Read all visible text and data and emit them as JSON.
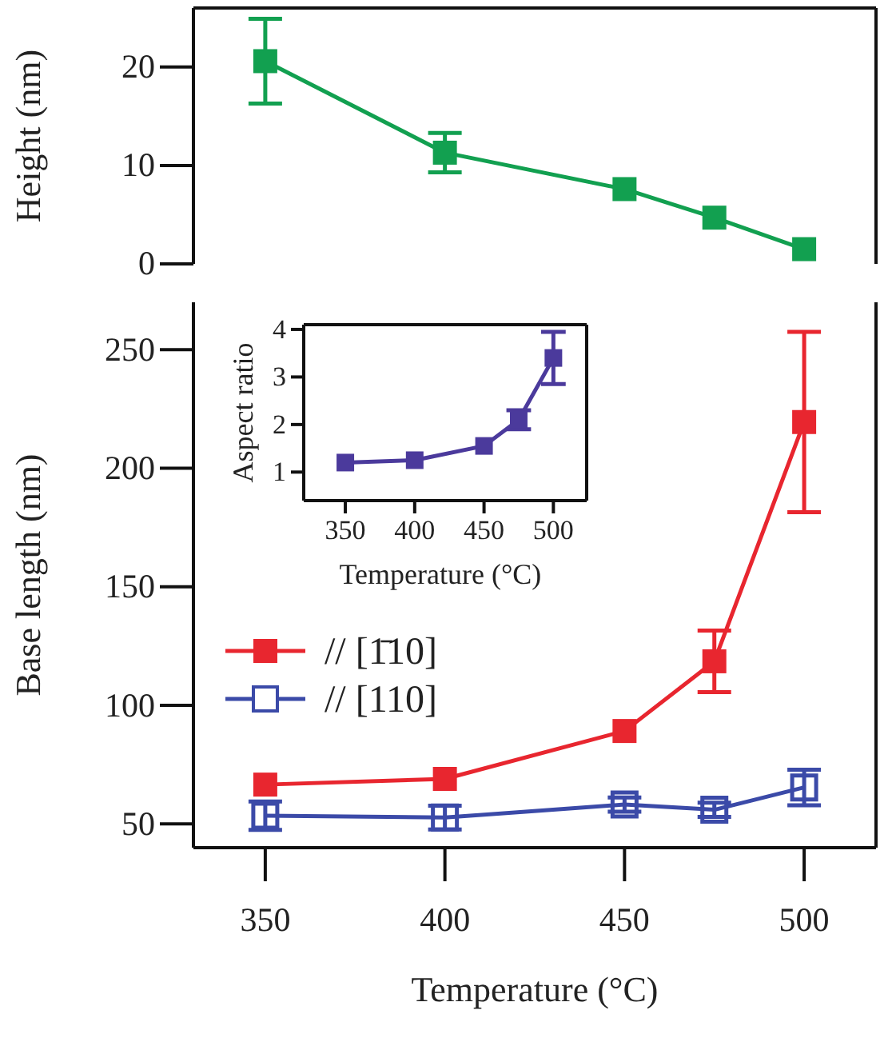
{
  "chart_data": [
    {
      "type": "line",
      "ylabel": "Height (nm)",
      "x": [
        350,
        400,
        450,
        475,
        500
      ],
      "xlim": [
        330,
        520
      ],
      "ylim": [
        0,
        26
      ],
      "yticks": [
        0,
        10,
        20
      ],
      "tick_labels": "y",
      "marker": "square",
      "series": [
        {
          "color": "#12a050",
          "values": [
            20.6,
            11.3,
            7.6,
            4.7,
            1.5
          ],
          "errors": [
            4.3,
            2,
            null,
            null,
            null
          ]
        }
      ]
    },
    {
      "type": "line",
      "xlabel": "Temperature (°C)",
      "ylabel": "Base length (nm)",
      "x": [
        350,
        400,
        450,
        475,
        500
      ],
      "xlim": [
        330,
        520
      ],
      "ylim": [
        40,
        270
      ],
      "xticks": [
        350,
        400,
        450,
        500
      ],
      "yticks": [
        50,
        100,
        150,
        200,
        250
      ],
      "marker": "square",
      "legend": "left",
      "series": [
        {
          "name": "// [1̄10]",
          "color": "#e8262f",
          "values": [
            66.6,
            69,
            89.2,
            118.6,
            219.5
          ],
          "errors": [
            null,
            null,
            null,
            13,
            38
          ]
        },
        {
          "name": "// [110]",
          "color": "#3b4aa8",
          "values": [
            53.5,
            52.7,
            58.2,
            56,
            65.4
          ],
          "errors": [
            6,
            5,
            3,
            3,
            7.5
          ]
        }
      ]
    },
    {
      "type": "line",
      "xlabel": "Temperature (°C)",
      "ylabel": "Aspect ratio",
      "x": [
        350,
        400,
        450,
        475,
        500
      ],
      "xlim": [
        320,
        524
      ],
      "ylim": [
        0.4,
        4.1
      ],
      "xticks": [
        350,
        400,
        450,
        500
      ],
      "yticks": [
        1,
        2,
        3,
        4
      ],
      "marker": "square",
      "series": [
        {
          "color": "#4b3a9c",
          "values": [
            1.2,
            1.25,
            1.55,
            2.1,
            3.4
          ],
          "errors": [
            null,
            null,
            null,
            0.2,
            0.55
          ]
        }
      ]
    }
  ]
}
